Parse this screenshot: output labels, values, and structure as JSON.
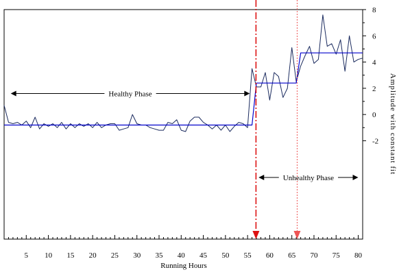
{
  "chart_data": {
    "type": "line",
    "xlabel": "Running Hours",
    "ylabel": "Amplitude with constant fit",
    "xlim": [
      0,
      81
    ],
    "ylim": [
      -9.5,
      8
    ],
    "x_ticks": [
      5,
      10,
      15,
      20,
      25,
      30,
      35,
      40,
      45,
      50,
      55,
      60,
      65,
      70,
      75,
      80
    ],
    "y_ticks": [
      -2,
      0,
      2,
      4,
      6,
      8
    ],
    "y_tick_labels": [
      "-2",
      "0",
      "2",
      "4",
      "6",
      "8"
    ],
    "y_axis_side": "right",
    "series": [
      {
        "type": "line",
        "color": "#1a2a5e",
        "x": [
          0,
          1,
          2,
          3,
          4,
          5,
          6,
          7,
          8,
          9,
          10,
          11,
          12,
          13,
          14,
          15,
          16,
          17,
          18,
          19,
          20,
          21,
          22,
          23,
          24,
          25,
          26,
          27,
          28,
          29,
          30,
          31,
          32,
          33,
          34,
          35,
          36,
          37,
          38,
          39,
          40,
          41,
          42,
          43,
          44,
          45,
          46,
          47,
          48,
          49,
          50,
          51,
          52,
          53,
          54,
          55,
          56,
          57,
          58,
          59,
          60,
          61,
          62,
          63,
          64,
          65,
          66,
          67,
          68,
          69,
          70,
          71,
          72,
          73,
          74,
          75,
          76,
          77,
          78,
          79,
          80,
          81
        ],
        "y": [
          0.7,
          -0.6,
          -0.7,
          -0.6,
          -0.8,
          -0.5,
          -1.0,
          -0.2,
          -1.1,
          -0.7,
          -0.9,
          -0.7,
          -1.0,
          -0.6,
          -1.1,
          -0.7,
          -1.0,
          -0.7,
          -0.9,
          -0.7,
          -1.0,
          -0.6,
          -1.0,
          -0.8,
          -0.7,
          -0.7,
          -1.2,
          -1.1,
          -1.0,
          0.0,
          -0.7,
          -0.8,
          -0.8,
          -1.0,
          -1.1,
          -1.2,
          -1.2,
          -0.6,
          -0.7,
          -0.4,
          -1.2,
          -1.3,
          -0.5,
          -0.2,
          -0.2,
          -0.6,
          -0.8,
          -1.1,
          -0.8,
          -1.2,
          -0.8,
          -1.3,
          -0.9,
          -0.6,
          -0.7,
          -1.0,
          3.5,
          2.1,
          2.1,
          3.2,
          1.1,
          3.2,
          2.9,
          1.3,
          2.0,
          5.1,
          2.5,
          3.7,
          4.5,
          5.2,
          3.9,
          4.2,
          7.6,
          5.2,
          5.4,
          4.6,
          5.7,
          3.3,
          6.0,
          4.0,
          4.2,
          4.3
        ]
      },
      {
        "type": "step",
        "color": "#0000cc",
        "x": [
          0,
          56,
          57,
          66,
          67,
          81
        ],
        "y": [
          -0.8,
          -0.8,
          2.4,
          2.4,
          4.7,
          4.7
        ]
      }
    ],
    "vlines": [
      {
        "x": 56.9,
        "style": "dashdot",
        "color": "#dd1111"
      },
      {
        "x": 66.2,
        "style": "dotted",
        "color": "#ee5555"
      }
    ],
    "annotations": [
      {
        "text": "Healthy Phase",
        "x_start": 1.5,
        "x_end": 55.5,
        "y": 1.6
      },
      {
        "text": "Unhealthy Phase",
        "x_start": 57.5,
        "x_end": 80,
        "y": -4.8
      }
    ]
  }
}
